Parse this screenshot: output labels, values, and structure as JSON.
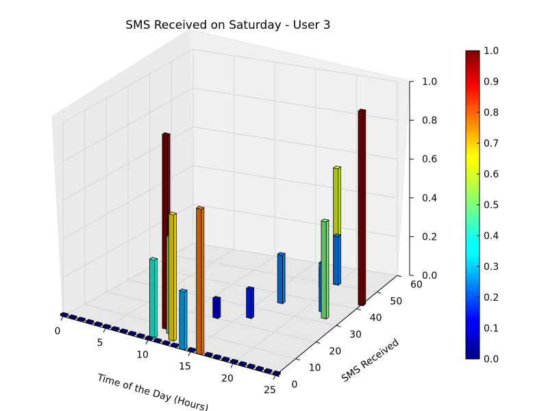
{
  "chart_data": {
    "type": "bar3d",
    "title": "SMS Received on Saturday - User 3",
    "xlabel": "Time of the Day (Hours)",
    "ylabel": "SMS Received",
    "zlabel": "",
    "xlim": [
      0,
      25
    ],
    "ylim": [
      0,
      60
    ],
    "zlim": [
      0,
      1
    ],
    "xticks": [
      "0",
      "5",
      "10",
      "15",
      "20",
      "25"
    ],
    "yticks": [
      "0",
      "10",
      "20",
      "30",
      "40",
      "50",
      "60"
    ],
    "zticks": [
      "0.0",
      "0.2",
      "0.4",
      "0.6",
      "0.8",
      "1.0"
    ],
    "grid": true,
    "colorbar": {
      "range": [
        0,
        1
      ],
      "ticks": [
        "0.0",
        "0.1",
        "0.2",
        "0.3",
        "0.4",
        "0.5",
        "0.6",
        "0.7",
        "0.8",
        "0.9",
        "1.0"
      ],
      "colormap": "jet"
    },
    "bars": [
      {
        "x": 10,
        "y": 8,
        "z": 1.0
      },
      {
        "x": 10,
        "y": 2,
        "z": 0.4
      },
      {
        "x": 11,
        "y": 6,
        "z": 0.5
      },
      {
        "x": 12,
        "y": 3,
        "z": 0.65
      },
      {
        "x": 14,
        "y": 0,
        "z": 0.3
      },
      {
        "x": 16,
        "y": 0,
        "z": 0.75
      },
      {
        "x": 13,
        "y": 20,
        "z": 0.1
      },
      {
        "x": 16,
        "y": 24,
        "z": 0.15
      },
      {
        "x": 17,
        "y": 35,
        "z": 0.25
      },
      {
        "x": 19,
        "y": 47,
        "z": 0.1
      },
      {
        "x": 20,
        "y": 50,
        "z": 0.6
      },
      {
        "x": 20,
        "y": 50,
        "z": 0.25
      },
      {
        "x": 22,
        "y": 35,
        "z": 0.25
      },
      {
        "x": 23,
        "y": 32,
        "z": 0.5
      },
      {
        "x": 25,
        "y": 42,
        "z": 1.0
      }
    ]
  }
}
